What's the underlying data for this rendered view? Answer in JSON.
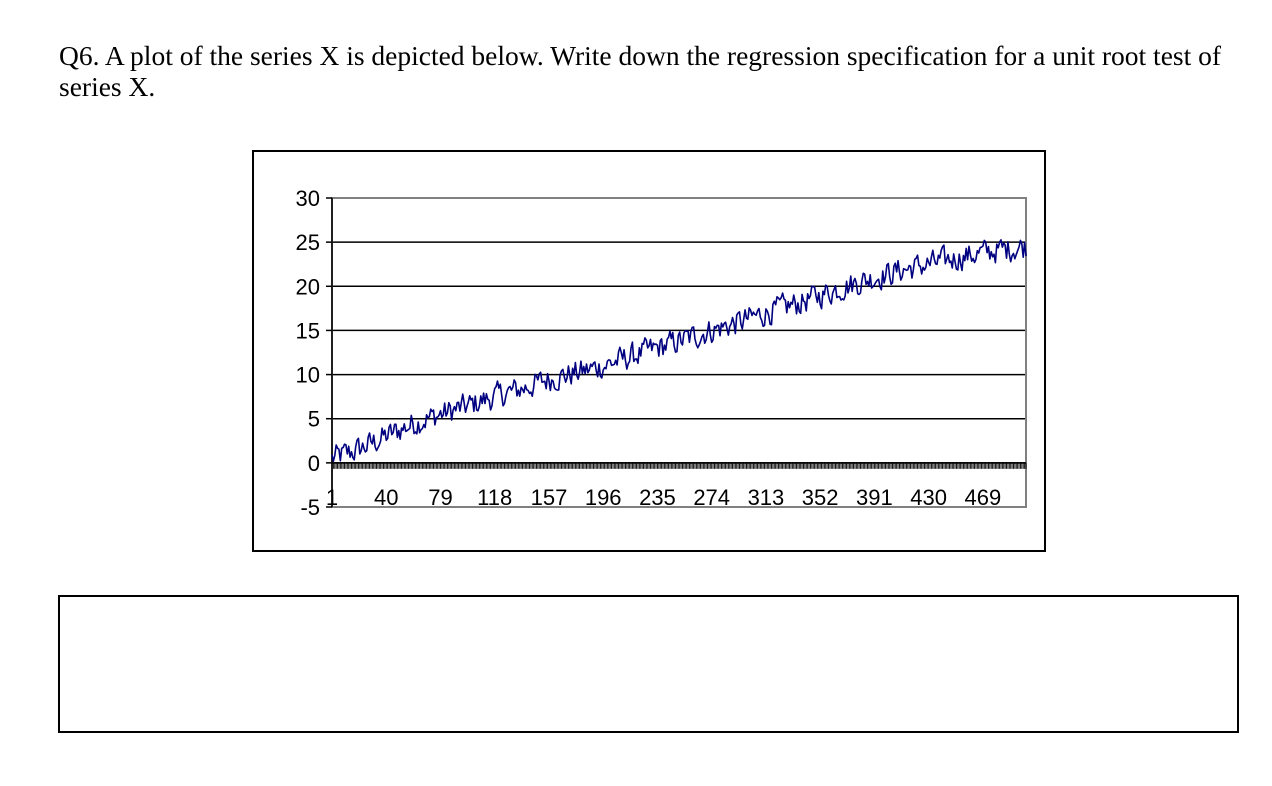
{
  "question": {
    "text": "Q6. A plot of the series X is depicted below. Write down the regression specification for a unit root test of series X."
  },
  "answer_box": {
    "value": ""
  },
  "chart_data": {
    "type": "line",
    "title": "",
    "xlabel": "",
    "ylabel": "",
    "ylim": [
      -5,
      30
    ],
    "xlim": [
      1,
      500
    ],
    "y_ticks": [
      30,
      25,
      20,
      15,
      10,
      5,
      0,
      -5
    ],
    "x_tick_labels": [
      "1",
      "40",
      "79",
      "118",
      "157",
      "196",
      "235",
      "274",
      "313",
      "352",
      "391",
      "430",
      "469"
    ],
    "x_tick_values": [
      1,
      40,
      79,
      118,
      157,
      196,
      235,
      274,
      313,
      352,
      391,
      430,
      469
    ],
    "gridlines": "horizontal",
    "legend": "none",
    "series_color": "#000080",
    "series": [
      {
        "x": [
          1,
          20,
          40,
          60,
          79,
          100,
          118,
          140,
          157,
          180,
          196,
          215,
          235,
          255,
          274,
          295,
          313,
          335,
          352,
          370,
          391,
          410,
          430,
          450,
          469,
          485,
          500
        ],
        "values": [
          0.5,
          1.5,
          3.0,
          4.5,
          5.5,
          6.5,
          7.5,
          8.5,
          9.5,
          10.3,
          11.0,
          12.0,
          13.0,
          14.0,
          15.0,
          16.0,
          17.0,
          18.0,
          19.0,
          20.0,
          21.0,
          21.8,
          22.5,
          23.2,
          23.8,
          24.2,
          24.5
        ]
      }
    ]
  }
}
